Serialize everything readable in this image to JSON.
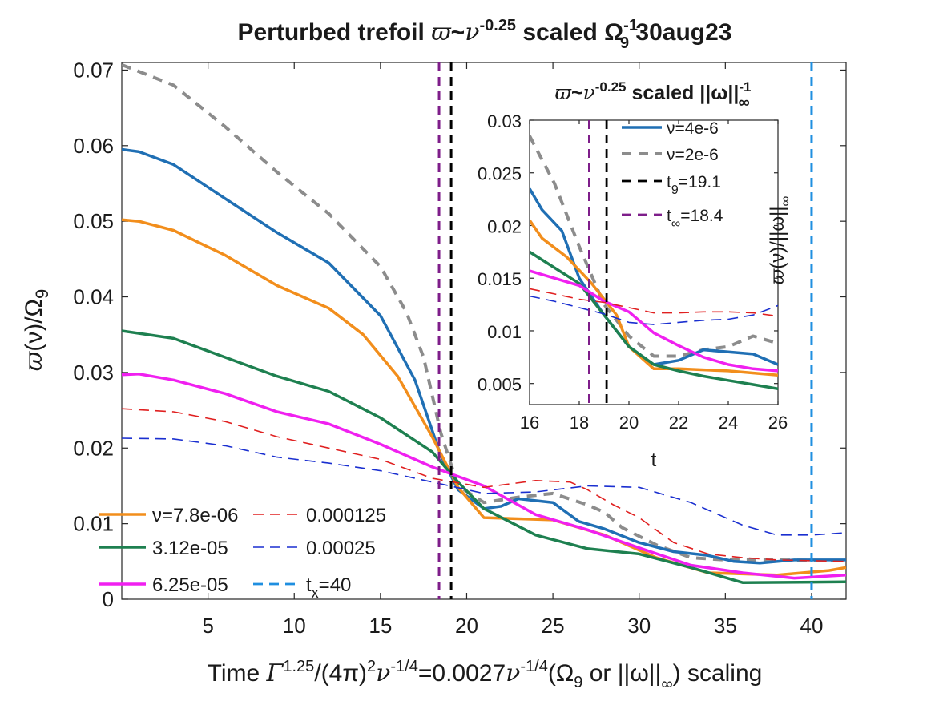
{
  "chart_data": [
    {
      "type": "line",
      "title": {
        "pre": "Perturbed trefoil ",
        "sym": "ϖ",
        "mid": "~",
        "nu": "ν",
        "exp": "-0.25",
        "post": " scaled ",
        "omega": "Ω",
        "sub": "9",
        "sup": "-1",
        "date": " 30aug23"
      },
      "xlabel": {
        "pre": "Time  ",
        "gamma": "Γ",
        "exp1": "1.25",
        "mid1": "/(4π)",
        "exp2": "2",
        "nu1": "ν",
        "exp3": "-1/4",
        "mid2": "=0.0027",
        "nu2": "ν",
        "exp4": "-1/4",
        "mid3": "(Ω",
        "sub": "9",
        "mid4": " or ||ω||",
        "sub2": "∞",
        "post": ") scaling"
      },
      "ylabel": {
        "sym": "ϖ",
        "mid": "(ν)/Ω",
        "sub": "9"
      },
      "xlim": [
        0,
        42
      ],
      "ylim": [
        0,
        0.071
      ],
      "xticks": [
        "5",
        "10",
        "15",
        "20",
        "25",
        "30",
        "35",
        "40"
      ],
      "yticks": [
        "0",
        "0.01",
        "0.02",
        "0.03",
        "0.04",
        "0.05",
        "0.06",
        "0.07"
      ],
      "xtick_values": [
        5,
        10,
        15,
        20,
        25,
        30,
        35,
        40
      ],
      "ytick_values": [
        0,
        0.01,
        0.02,
        0.03,
        0.04,
        0.05,
        0.06,
        0.07
      ],
      "vlines": [
        {
          "x": 18.4,
          "color": "#7e1e8a"
        },
        {
          "x": 19.1,
          "color": "#000000"
        },
        {
          "x": 40,
          "color": "#1f8fe0"
        }
      ],
      "series": [
        {
          "name": "ν=2e-6 (dashed gray)",
          "color": "#8c8c8c",
          "style": "dashgray",
          "x": [
            0,
            3,
            6,
            9,
            12,
            15,
            16.5,
            17.5,
            18.5,
            19.5,
            21,
            23,
            25,
            27,
            28,
            29,
            31,
            33,
            35,
            38,
            42
          ],
          "y": [
            0.0707,
            0.068,
            0.0625,
            0.0565,
            0.051,
            0.044,
            0.038,
            0.032,
            0.022,
            0.015,
            0.0128,
            0.0135,
            0.014,
            0.0125,
            0.0115,
            0.0095,
            0.0072,
            0.0055,
            0.0052,
            0.0052,
            0.0051
          ]
        },
        {
          "name": "ν=4e-6 (blue)",
          "color": "#1f6fb4",
          "style": "solid",
          "x": [
            0,
            1,
            3,
            6,
            9,
            12,
            15,
            17,
            18.5,
            19.5,
            21,
            22,
            23,
            25,
            26.5,
            28,
            30,
            32,
            34,
            35.5,
            37,
            39,
            42
          ],
          "y": [
            0.0595,
            0.0592,
            0.0575,
            0.053,
            0.0485,
            0.0445,
            0.0375,
            0.029,
            0.019,
            0.0145,
            0.012,
            0.0123,
            0.0133,
            0.0128,
            0.0103,
            0.0093,
            0.0075,
            0.0063,
            0.0058,
            0.005,
            0.0048,
            0.0052,
            0.0052
          ]
        },
        {
          "name": "ν=7.8e-06",
          "color": "#f28e1c",
          "style": "solid",
          "x": [
            0,
            1,
            3,
            6,
            9,
            12,
            14,
            16,
            18,
            19.5,
            21,
            25,
            28,
            31,
            34,
            38,
            41,
            42
          ],
          "y": [
            0.0502,
            0.05,
            0.0488,
            0.0455,
            0.0415,
            0.0385,
            0.035,
            0.0295,
            0.0215,
            0.0148,
            0.0108,
            0.0105,
            0.0085,
            0.0055,
            0.0035,
            0.0032,
            0.0038,
            0.0042
          ]
        },
        {
          "name": "3.12e-05",
          "color": "#1e8050",
          "style": "solid",
          "x": [
            0,
            3,
            6,
            9,
            12,
            15,
            18,
            19.5,
            21,
            24,
            27,
            30,
            33,
            36,
            42
          ],
          "y": [
            0.0355,
            0.0345,
            0.032,
            0.0295,
            0.0275,
            0.024,
            0.0195,
            0.0155,
            0.012,
            0.0085,
            0.0067,
            0.006,
            0.0042,
            0.0022,
            0.0023
          ]
        },
        {
          "name": "6.25e-05",
          "color": "#f020f0",
          "style": "solid",
          "x": [
            0,
            1,
            3,
            6,
            9,
            12,
            15,
            18,
            21,
            24,
            27,
            30,
            33,
            36,
            39,
            42
          ],
          "y": [
            0.0297,
            0.0298,
            0.029,
            0.0272,
            0.0248,
            0.0232,
            0.0205,
            0.0175,
            0.015,
            0.0112,
            0.0092,
            0.0068,
            0.0045,
            0.0035,
            0.0028,
            0.0032
          ]
        },
        {
          "name": "0.000125",
          "color": "#e02020",
          "style": "dashthin",
          "x": [
            0,
            3,
            6,
            9,
            12,
            15,
            18,
            21,
            24,
            26,
            27,
            28.5,
            30,
            32,
            34,
            36,
            38,
            42
          ],
          "y": [
            0.0252,
            0.0248,
            0.0235,
            0.0215,
            0.02,
            0.0185,
            0.016,
            0.0148,
            0.0157,
            0.0155,
            0.0145,
            0.0125,
            0.0108,
            0.0075,
            0.006,
            0.0055,
            0.0052,
            0.005
          ]
        },
        {
          "name": "0.00025",
          "color": "#1a2fd0",
          "style": "dashthin",
          "x": [
            0,
            3,
            6,
            9,
            12,
            15,
            18,
            21,
            24,
            27,
            30,
            33,
            36,
            38,
            40,
            42
          ],
          "y": [
            0.0213,
            0.0212,
            0.0203,
            0.0188,
            0.018,
            0.017,
            0.0155,
            0.014,
            0.0142,
            0.015,
            0.0148,
            0.0128,
            0.0098,
            0.0085,
            0.0085,
            0.0088
          ]
        }
      ],
      "legend": [
        {
          "label": "ν=7.8e-06",
          "color": "#f28e1c",
          "style": "solid"
        },
        {
          "label": "0.000125",
          "color": "#e02020",
          "style": "dashthin"
        },
        {
          "label": "3.12e-05",
          "color": "#1e8050",
          "style": "solid"
        },
        {
          "label": "0.00025",
          "color": "#1a2fd0",
          "style": "dashthin"
        },
        {
          "label": "6.25e-05",
          "color": "#f020f0",
          "style": "solid"
        },
        {
          "label": "t",
          "sub": "x",
          "post": "=40",
          "color": "#1f8fe0",
          "style": "dashline"
        }
      ]
    },
    {
      "type": "line",
      "title": {
        "sym": "ϖ",
        "mid": "~",
        "nu": "ν",
        "exp": "-0.25",
        "post": " scaled ||ω||",
        "sub": "∞",
        "sup": "-1"
      },
      "xlabel": "t",
      "ylabel": {
        "sym": "ϖ",
        "mid": "(ν)/||ω||",
        "sub": "∞"
      },
      "xlim": [
        16,
        26
      ],
      "ylim": [
        0.003,
        0.03
      ],
      "xticks": [
        "16",
        "18",
        "20",
        "22",
        "24",
        "26"
      ],
      "yticks": [
        "0.005",
        "0.01",
        "0.015",
        "0.02",
        "0.025",
        "0.03"
      ],
      "xtick_values": [
        16,
        18,
        20,
        22,
        24,
        26
      ],
      "ytick_values": [
        0.005,
        0.01,
        0.015,
        0.02,
        0.025,
        0.03
      ],
      "vlines": [
        {
          "x": 18.4,
          "color": "#7e1e8a"
        },
        {
          "x": 19.1,
          "color": "#000000"
        }
      ],
      "series": [
        {
          "name": "ν=2e-6",
          "color": "#8c8c8c",
          "style": "dashgray",
          "x": [
            16,
            17,
            18,
            19,
            20,
            21,
            22,
            23,
            24,
            25,
            26
          ],
          "y": [
            0.0285,
            0.024,
            0.018,
            0.0125,
            0.0095,
            0.0076,
            0.0076,
            0.0082,
            0.0085,
            0.0095,
            0.0088
          ]
        },
        {
          "name": "ν=4e-6",
          "color": "#1f6fb4",
          "style": "solid",
          "x": [
            16,
            16.5,
            17.3,
            18,
            19,
            20,
            21,
            22,
            23,
            24,
            25,
            26
          ],
          "y": [
            0.0235,
            0.0215,
            0.0195,
            0.015,
            0.0115,
            0.0085,
            0.0068,
            0.0072,
            0.0082,
            0.008,
            0.0078,
            0.0068
          ]
        },
        {
          "name": "7.8e-06",
          "color": "#f28e1c",
          "style": "solid",
          "x": [
            16,
            16.5,
            17.5,
            18.5,
            19.5,
            20,
            21,
            22,
            24,
            26
          ],
          "y": [
            0.0205,
            0.0188,
            0.017,
            0.0145,
            0.0115,
            0.0085,
            0.0064,
            0.0064,
            0.0062,
            0.0058
          ]
        },
        {
          "name": "3.12e-05",
          "color": "#1e8050",
          "style": "solid",
          "x": [
            16,
            17,
            18,
            19,
            20,
            21,
            22,
            23,
            24,
            25,
            26
          ],
          "y": [
            0.0175,
            0.016,
            0.0145,
            0.0115,
            0.0085,
            0.0068,
            0.0062,
            0.0057,
            0.0053,
            0.0049,
            0.0045
          ]
        },
        {
          "name": "6.25e-05",
          "color": "#f020f0",
          "style": "solid",
          "x": [
            16,
            17,
            18,
            19,
            20,
            21,
            22,
            23,
            24,
            25,
            26
          ],
          "y": [
            0.0157,
            0.015,
            0.0143,
            0.0128,
            0.0118,
            0.0098,
            0.0086,
            0.0075,
            0.0068,
            0.0064,
            0.0062
          ]
        },
        {
          "name": "0.000125",
          "color": "#e02020",
          "style": "dashthin",
          "x": [
            16,
            17,
            18,
            19,
            20,
            21,
            22,
            23,
            24,
            25,
            26
          ],
          "y": [
            0.014,
            0.0135,
            0.013,
            0.0127,
            0.0122,
            0.0117,
            0.0117,
            0.0118,
            0.0118,
            0.0117,
            0.0114
          ]
        },
        {
          "name": "0.00025",
          "color": "#1a2fd0",
          "style": "dashthin",
          "x": [
            16,
            17,
            18,
            19,
            20,
            21,
            22,
            23,
            24,
            25,
            26
          ],
          "y": [
            0.0133,
            0.0128,
            0.0122,
            0.0116,
            0.0108,
            0.0106,
            0.0108,
            0.011,
            0.0111,
            0.0115,
            0.0124
          ]
        }
      ],
      "legend": [
        {
          "label": "ν=4e-6",
          "color": "#1f6fb4",
          "style": "solid"
        },
        {
          "label": "ν=2e-6",
          "color": "#8c8c8c",
          "style": "dashgray"
        },
        {
          "label": "t",
          "sub": "9",
          "post": "=19.1",
          "color": "#000000",
          "style": "dashline"
        },
        {
          "label": "t",
          "sub": "∞",
          "post": "=18.4",
          "color": "#7e1e8a",
          "style": "dashline"
        }
      ]
    }
  ]
}
